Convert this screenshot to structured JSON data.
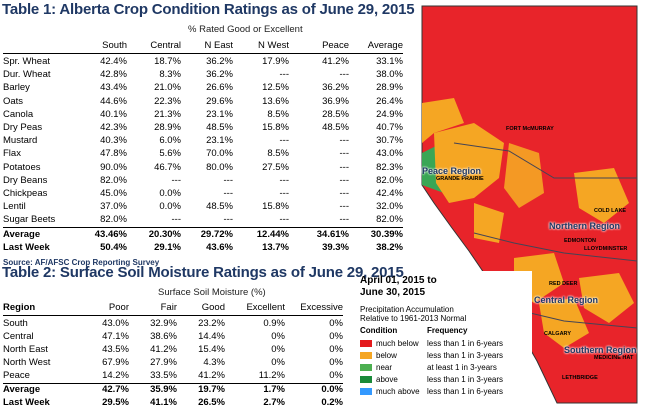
{
  "table1": {
    "title": "Table 1: Alberta Crop Condition Ratings as of June 29, 2015",
    "subheader": "% Rated Good or Excellent",
    "columns": [
      "South",
      "Central",
      "N East",
      "N West",
      "Peace",
      "Average"
    ],
    "rows": [
      {
        "name": "Spr. Wheat",
        "values": [
          "42.4%",
          "18.7%",
          "36.2%",
          "17.9%",
          "41.2%",
          "33.1%"
        ]
      },
      {
        "name": "Dur. Wheat",
        "values": [
          "42.8%",
          "8.3%",
          "36.2%",
          "---",
          "---",
          "38.0%"
        ]
      },
      {
        "name": "Barley",
        "values": [
          "43.4%",
          "21.0%",
          "26.6%",
          "12.5%",
          "36.2%",
          "28.9%"
        ]
      },
      {
        "name": "Oats",
        "values": [
          "44.6%",
          "22.3%",
          "29.6%",
          "13.6%",
          "36.9%",
          "26.4%"
        ]
      },
      {
        "name": "Canola",
        "values": [
          "40.1%",
          "21.3%",
          "23.1%",
          "8.5%",
          "28.5%",
          "24.9%"
        ]
      },
      {
        "name": "Dry Peas",
        "values": [
          "42.3%",
          "28.9%",
          "48.5%",
          "15.8%",
          "48.5%",
          "40.7%"
        ]
      },
      {
        "name": "Mustard",
        "values": [
          "40.3%",
          "6.0%",
          "23.1%",
          "---",
          "---",
          "30.7%"
        ]
      },
      {
        "name": "Flax",
        "values": [
          "47.8%",
          "5.6%",
          "70.0%",
          "8.5%",
          "---",
          "43.0%"
        ]
      },
      {
        "name": "Potatoes",
        "values": [
          "90.0%",
          "46.7%",
          "80.0%",
          "27.5%",
          "---",
          "82.3%"
        ]
      },
      {
        "name": "Dry Beans",
        "values": [
          "82.0%",
          "---",
          "---",
          "---",
          "---",
          "82.0%"
        ]
      },
      {
        "name": "Chickpeas",
        "values": [
          "45.0%",
          "0.0%",
          "---",
          "---",
          "---",
          "42.4%"
        ]
      },
      {
        "name": "Lentil",
        "values": [
          "37.0%",
          "0.0%",
          "48.5%",
          "15.8%",
          "---",
          "32.0%"
        ]
      },
      {
        "name": "Sugar Beets",
        "values": [
          "82.0%",
          "---",
          "---",
          "---",
          "---",
          "82.0%"
        ]
      }
    ],
    "average": {
      "name": "Average",
      "values": [
        "43.46%",
        "20.30%",
        "29.72%",
        "12.44%",
        "34.61%",
        "30.39%"
      ]
    },
    "last_week": {
      "name": "Last Week",
      "values": [
        "50.4%",
        "29.1%",
        "43.6%",
        "13.7%",
        "39.3%",
        "38.2%"
      ]
    },
    "source": "Source: AF/AFSC Crop Reporting Survey"
  },
  "table2": {
    "title": "Table 2: Surface Soil Moisture Ratings as of June 29, 2015",
    "subheader": "Surface Soil Moisture (%)",
    "region_header": "Region",
    "columns": [
      "Poor",
      "Fair",
      "Good",
      "Excellent",
      "Excessive"
    ],
    "rows": [
      {
        "name": "South",
        "values": [
          "43.0%",
          "32.9%",
          "23.2%",
          "0.9%",
          "0%"
        ]
      },
      {
        "name": "Central",
        "values": [
          "47.1%",
          "38.6%",
          "14.4%",
          "0%",
          "0%"
        ]
      },
      {
        "name": "North East",
        "values": [
          "43.5%",
          "41.2%",
          "15.4%",
          "0%",
          "0%"
        ]
      },
      {
        "name": "North West",
        "values": [
          "67.9%",
          "27.9%",
          "4.3%",
          "0%",
          "0%"
        ]
      },
      {
        "name": "Peace",
        "values": [
          "14.2%",
          "33.5%",
          "41.2%",
          "11.2%",
          "0%"
        ]
      }
    ],
    "average": {
      "name": "Average",
      "values": [
        "42.7%",
        "35.9%",
        "19.7%",
        "1.7%",
        "0.0%"
      ]
    },
    "last_week": {
      "name": "Last Week",
      "values": [
        "29.5%",
        "41.1%",
        "26.5%",
        "2.7%",
        "0.2%"
      ]
    }
  },
  "map": {
    "period_line1": "April 01, 2015 to",
    "period_line2": "June 30, 2015",
    "desc_line1": "Precipitation Accumulation",
    "desc_line2": "Relative to 1961-2013 Normal",
    "legend_condition_header": "Condition",
    "legend_frequency_header": "Frequency",
    "legend": [
      {
        "condition": "much below",
        "frequency": "less than 1 in 6-years",
        "color": "#e41a1c"
      },
      {
        "condition": "below",
        "frequency": "less than 1 in 3-years",
        "color": "#f5a623"
      },
      {
        "condition": "near",
        "frequency": "at least 1 in 3-years",
        "color": "#4caf50"
      },
      {
        "condition": "above",
        "frequency": "less than 1 in 3-years",
        "color": "#1a8a3a"
      },
      {
        "condition": "much above",
        "frequency": "less than 1 in 6-years",
        "color": "#3399ff"
      }
    ],
    "regions": [
      "Peace Region",
      "Northern Region",
      "Central Region",
      "Southern Region"
    ],
    "towns": [
      "FORT McMURRAY",
      "GRANDE PRAIRIE",
      "COLD LAKE",
      "EDMONTON",
      "LLOYDMINSTER",
      "RED DEER",
      "CALGARY",
      "MEDICINE HAT",
      "LETHBRIDGE"
    ]
  }
}
